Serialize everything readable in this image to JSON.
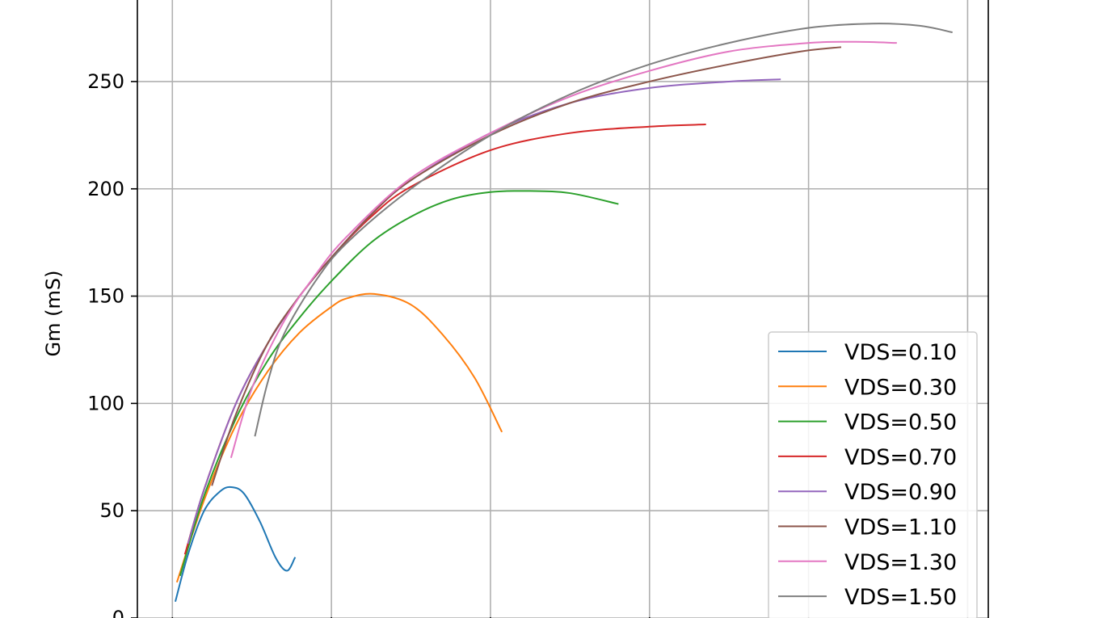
{
  "chart_data": {
    "type": "line",
    "title": "",
    "xlabel": "",
    "ylabel": "Gm (mS)",
    "y_ticks": [
      0,
      50,
      100,
      150,
      200,
      250
    ],
    "y_tick_labels": [
      "0",
      "50",
      "100",
      "150",
      "200",
      "250"
    ],
    "x_ticks": [
      0.0,
      0.1,
      0.2,
      0.3,
      0.4,
      0.5
    ],
    "ylim": [
      0,
      288
    ],
    "xlim": [
      -0.022,
      0.513
    ],
    "grid": true,
    "legend_position": "lower right",
    "series": [
      {
        "name": "VDS=0.10",
        "color": "#1f77b4",
        "x": [
          0.002,
          0.01,
          0.02,
          0.03,
          0.037,
          0.045,
          0.055,
          0.065,
          0.072,
          0.077
        ],
        "y": [
          8,
          30,
          50,
          59,
          61,
          58,
          45,
          28,
          22,
          28
        ]
      },
      {
        "name": "VDS=0.30",
        "color": "#ff7f0e",
        "x": [
          0.003,
          0.02,
          0.04,
          0.06,
          0.08,
          0.1,
          0.11,
          0.127,
          0.15,
          0.17,
          0.19,
          0.207
        ],
        "y": [
          17,
          55,
          90,
          115,
          133,
          145,
          149,
          151,
          146,
          132,
          112,
          87
        ]
      },
      {
        "name": "VDS=0.50",
        "color": "#2ca02c",
        "x": [
          0.005,
          0.02,
          0.04,
          0.06,
          0.08,
          0.1,
          0.125,
          0.15,
          0.175,
          0.2,
          0.225,
          0.25,
          0.28
        ],
        "y": [
          20,
          57,
          93,
          120,
          140,
          157,
          175,
          187,
          195,
          198.5,
          199,
          198,
          193
        ]
      },
      {
        "name": "VDS=0.70",
        "color": "#d62728",
        "x": [
          0.008,
          0.02,
          0.04,
          0.06,
          0.08,
          0.1,
          0.125,
          0.15,
          0.2,
          0.25,
          0.3,
          0.335
        ],
        "y": [
          30,
          60,
          100,
          128,
          150,
          168,
          187,
          201,
          218,
          226,
          229,
          230
        ]
      },
      {
        "name": "VDS=0.90",
        "color": "#9467bd",
        "x": [
          0.01,
          0.02,
          0.04,
          0.06,
          0.08,
          0.1,
          0.125,
          0.15,
          0.2,
          0.25,
          0.3,
          0.35,
          0.382
        ],
        "y": [
          35,
          60,
          100,
          128,
          150,
          168,
          188,
          204,
          226,
          240,
          247,
          250,
          251
        ]
      },
      {
        "name": "VDS=1.10",
        "color": "#8c564b",
        "x": [
          0.025,
          0.04,
          0.06,
          0.08,
          0.1,
          0.125,
          0.15,
          0.2,
          0.25,
          0.3,
          0.35,
          0.395,
          0.42
        ],
        "y": [
          62,
          95,
          128,
          150,
          168,
          188,
          204,
          225,
          240,
          250,
          258,
          264,
          266
        ]
      },
      {
        "name": "VDS=1.30",
        "color": "#e377c2",
        "x": [
          0.037,
          0.05,
          0.07,
          0.09,
          0.11,
          0.15,
          0.2,
          0.25,
          0.3,
          0.35,
          0.4,
          0.43,
          0.455
        ],
        "y": [
          75,
          107,
          138,
          160,
          178,
          205,
          226,
          243,
          255,
          264,
          268,
          268.5,
          268
        ]
      },
      {
        "name": "VDS=1.50",
        "color": "#7f7f7f",
        "x": [
          0.052,
          0.06,
          0.07,
          0.09,
          0.11,
          0.15,
          0.2,
          0.25,
          0.3,
          0.35,
          0.4,
          0.44,
          0.47,
          0.49
        ],
        "y": [
          85,
          110,
          132,
          157,
          175,
          200,
          225,
          244,
          258,
          268,
          275,
          277,
          276,
          273
        ]
      }
    ]
  }
}
